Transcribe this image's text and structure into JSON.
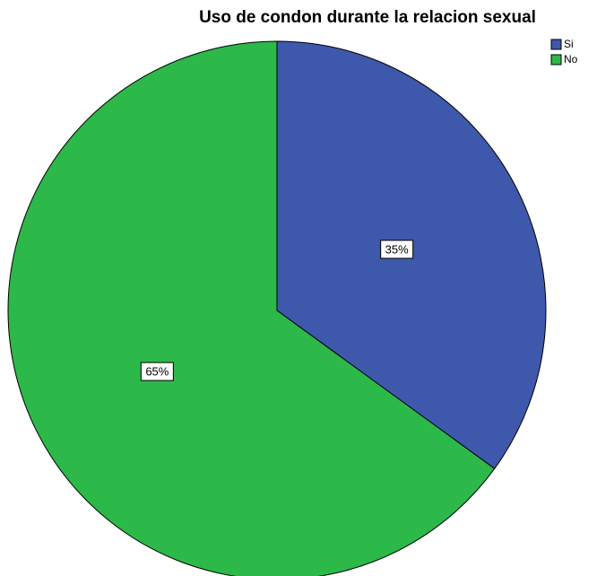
{
  "chart_data": {
    "type": "pie",
    "title": "Uso de condon durante la relacion sexual",
    "categories": [
      "Si",
      "No"
    ],
    "values": [
      35,
      65
    ],
    "value_labels": [
      "35%",
      "65%"
    ],
    "colors": [
      "#3e58ac",
      "#2db84a"
    ],
    "legend": "top-right"
  }
}
